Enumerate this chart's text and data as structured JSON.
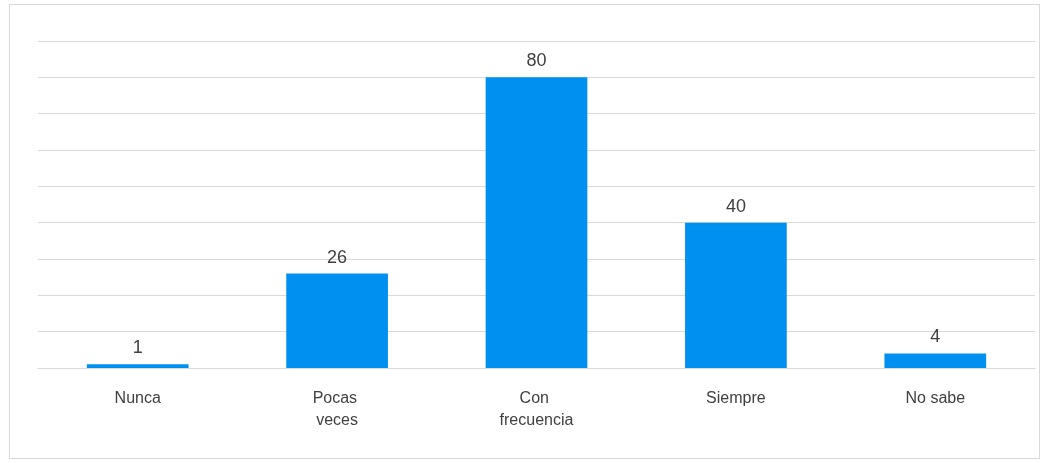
{
  "chart_data": {
    "type": "bar",
    "categories": [
      "Nunca",
      "Pocas veces",
      "Con frecuencia",
      "Siempre",
      "No sabe"
    ],
    "values": [
      1,
      26,
      80,
      40,
      4
    ],
    "color": "#0091f0",
    "ylim": [
      0,
      90
    ],
    "yticks": [
      {
        "value": 0,
        "label": null
      },
      {
        "value": 10,
        "label": null
      },
      {
        "value": 20,
        "label": null
      },
      {
        "value": 30,
        "label": null
      },
      {
        "value": 40,
        "label": null
      },
      {
        "value": 50,
        "label": null
      },
      {
        "value": 60,
        "label": null
      },
      {
        "value": 70,
        "label": null
      },
      {
        "value": 80,
        "label": null
      },
      {
        "value": 90,
        "label": null
      }
    ],
    "tick_labels": "x",
    "grid": "y",
    "data_labels": true
  }
}
